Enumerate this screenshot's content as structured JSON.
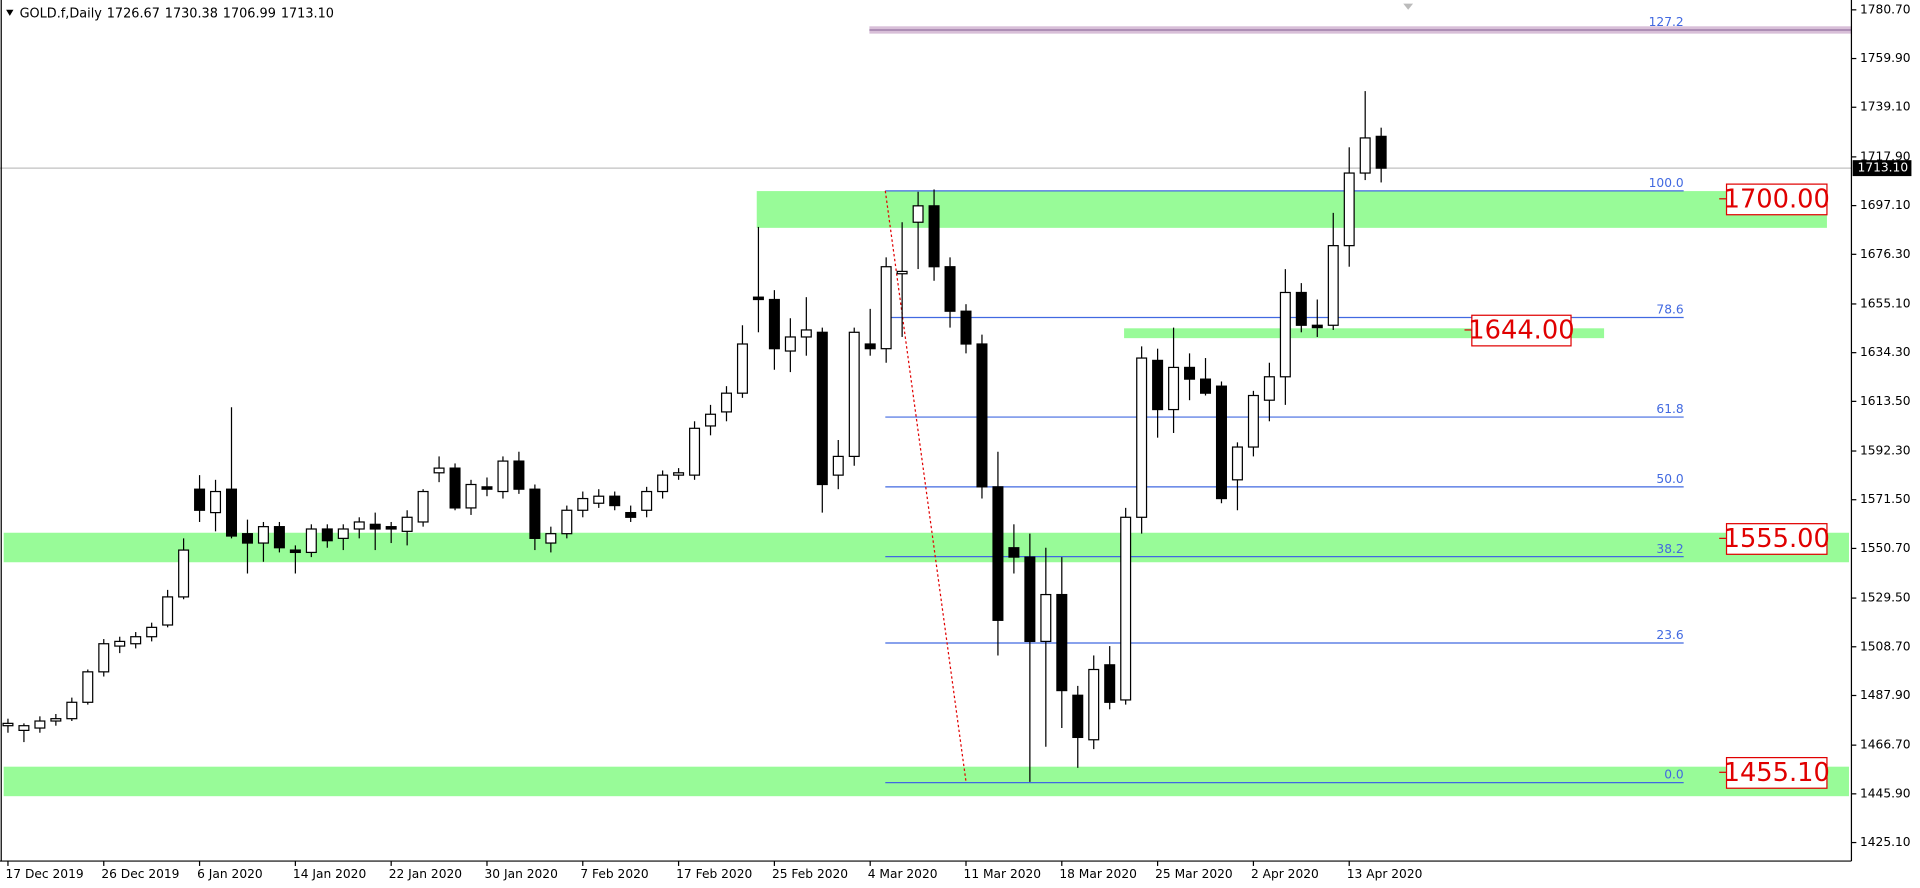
{
  "chart_data": {
    "type": "candlestick",
    "symbol": "GOLD.f,Daily",
    "header_ohlc": [
      "1726.67",
      "1730.38",
      "1706.99",
      "1713.10"
    ],
    "categories": [
      "17 Dec 2019",
      null,
      null,
      null,
      null,
      null,
      "26 Dec 2019",
      null,
      null,
      null,
      null,
      null,
      "6 Jan 2020",
      null,
      null,
      null,
      null,
      null,
      "14 Jan 2020",
      null,
      null,
      null,
      null,
      null,
      "22 Jan 2020",
      null,
      null,
      null,
      null,
      null,
      "30 Jan 2020",
      null,
      null,
      null,
      null,
      null,
      "7 Feb 2020",
      null,
      null,
      null,
      null,
      null,
      "17 Feb 2020",
      null,
      null,
      null,
      null,
      null,
      "25 Feb 2020",
      null,
      null,
      null,
      null,
      null,
      "4 Mar 2020",
      null,
      null,
      null,
      null,
      null,
      "11 Mar 2020",
      null,
      null,
      null,
      null,
      null,
      "18 Mar 2020",
      null,
      null,
      null,
      null,
      null,
      "25 Mar 2020",
      null,
      null,
      null,
      null,
      null,
      "2 Apr 2020",
      null,
      null,
      null,
      null,
      null,
      "13 Apr 2020",
      null,
      null
    ],
    "open": [
      1475,
      1473,
      1474,
      1477,
      1478,
      1485,
      1498,
      1509,
      1510,
      1513,
      1518,
      1530,
      1576,
      1566,
      1576,
      1557,
      1553,
      1560,
      1550,
      1549,
      1559,
      1555,
      1559,
      1561,
      1560,
      1558,
      1562,
      1583,
      1585,
      1568,
      1577,
      1575,
      1588,
      1576,
      1553,
      1557,
      1567,
      1570,
      1573,
      1566,
      1567,
      1575,
      1582,
      1582,
      1603,
      1609,
      1617,
      1658,
      1657,
      1635,
      1641,
      1643,
      1582,
      1590,
      1638,
      1636,
      1668,
      1690,
      1697,
      1671,
      1652,
      1638,
      1577,
      1551,
      1547,
      1511,
      1531,
      1488,
      1469,
      1501,
      1486,
      1564,
      1631,
      1610,
      1628,
      1623,
      1620,
      1580,
      1594,
      1614,
      1624,
      1660,
      1646,
      1646,
      1680,
      1711,
      1726.67
    ],
    "high": [
      1478,
      1476,
      1479,
      1480,
      1487,
      1499,
      1512,
      1513,
      1515,
      1519,
      1533,
      1555,
      1582,
      1580,
      1611,
      1563,
      1562,
      1562,
      1552,
      1561,
      1561,
      1561,
      1564,
      1566,
      1562,
      1567,
      1576,
      1590,
      1587,
      1580,
      1581,
      1590,
      1592,
      1578,
      1560,
      1569,
      1575,
      1576,
      1575,
      1569,
      1577,
      1584,
      1585,
      1605,
      1612,
      1620,
      1646,
      1688,
      1661,
      1649,
      1658,
      1645,
      1597,
      1645,
      1653,
      1675,
      1690,
      1703,
      1704,
      1675,
      1655,
      1642,
      1592,
      1561,
      1557,
      1551,
      1547,
      1492,
      1505,
      1509,
      1568,
      1637,
      1636,
      1645,
      1634,
      1632,
      1622,
      1596,
      1618,
      1630,
      1670,
      1664,
      1657,
      1694,
      1722,
      1746,
      1730.38
    ],
    "low": [
      1472,
      1468,
      1472,
      1475,
      1477,
      1484,
      1496,
      1506,
      1508,
      1511,
      1517,
      1529,
      1562,
      1558,
      1555,
      1540,
      1545,
      1549,
      1540,
      1547,
      1551,
      1550,
      1555,
      1550,
      1553,
      1552,
      1560,
      1579,
      1567,
      1565,
      1573,
      1572,
      1574,
      1550,
      1549,
      1555,
      1564,
      1568,
      1567,
      1562,
      1564,
      1572,
      1580,
      1580,
      1599,
      1605,
      1615,
      1643,
      1627,
      1626,
      1633,
      1566,
      1576,
      1586,
      1633,
      1630,
      1641,
      1670,
      1665,
      1645,
      1634,
      1572,
      1505,
      1540,
      1451,
      1466,
      1474,
      1457,
      1465,
      1482,
      1484,
      1557,
      1598,
      1600,
      1614,
      1616,
      1570,
      1567,
      1590,
      1605,
      1612,
      1643,
      1641,
      1644,
      1671,
      1708,
      1706.99
    ],
    "close": [
      1476,
      1475,
      1477,
      1478,
      1485,
      1498,
      1510,
      1511,
      1513,
      1517,
      1530,
      1550,
      1567,
      1575,
      1556,
      1553,
      1560,
      1551,
      1549,
      1559,
      1554,
      1559,
      1562,
      1559,
      1559,
      1564,
      1575,
      1585,
      1568,
      1578,
      1576,
      1588,
      1576,
      1555,
      1557,
      1567,
      1572,
      1573,
      1569,
      1564,
      1575,
      1582,
      1583,
      1602,
      1608,
      1617,
      1638,
      1657,
      1636,
      1641,
      1644,
      1578,
      1590,
      1643,
      1636,
      1671,
      1669,
      1697,
      1671,
      1652,
      1638,
      1577,
      1520,
      1547,
      1511,
      1531,
      1490,
      1470,
      1499,
      1485,
      1564,
      1632,
      1610,
      1628,
      1623,
      1617,
      1572,
      1594,
      1616,
      1624,
      1660,
      1646,
      1645,
      1680,
      1711,
      1726,
      1713.1
    ],
    "up_color": "#ffffff",
    "down_color": "#000000",
    "ylim": [
      1417.2,
      1784.9
    ],
    "yticks": [
      {
        "value": 1780.7,
        "label": "1780.70"
      },
      {
        "value": 1759.9,
        "label": "1759.90"
      },
      {
        "value": 1739.1,
        "label": "1739.10"
      },
      {
        "value": 1717.9,
        "label": "1717.90"
      },
      {
        "value": 1697.1,
        "label": "1697.10"
      },
      {
        "value": 1676.3,
        "label": "1676.30"
      },
      {
        "value": 1655.1,
        "label": "1655.10"
      },
      {
        "value": 1634.3,
        "label": "1634.30"
      },
      {
        "value": 1613.5,
        "label": "1613.50"
      },
      {
        "value": 1592.3,
        "label": "1592.30"
      },
      {
        "value": 1571.5,
        "label": "1571.50"
      },
      {
        "value": 1550.7,
        "label": "1550.70"
      },
      {
        "value": 1529.5,
        "label": "1529.50"
      },
      {
        "value": 1508.7,
        "label": "1508.70"
      },
      {
        "value": 1487.9,
        "label": "1487.90"
      },
      {
        "value": 1466.7,
        "label": "1466.70"
      },
      {
        "value": 1445.9,
        "label": "1445.90"
      },
      {
        "value": 1425.1,
        "label": "1425.10"
      }
    ],
    "last_price": {
      "value": 1713.1,
      "label": "1713.10"
    },
    "zones": [
      {
        "top": 1703.3,
        "bottom": 1687.6,
        "level": 1700,
        "label": "1700.00"
      },
      {
        "top": 1644.7,
        "bottom": 1640.5,
        "level": 1644,
        "label": "1644.00"
      },
      {
        "top": 1557.4,
        "bottom": 1544.8,
        "level": 1555,
        "label": "1555.00"
      },
      {
        "top": 1457.5,
        "bottom": 1444.9,
        "level": 1455.1,
        "label": "1455.10"
      }
    ],
    "fib_levels": [
      {
        "label": "127.2",
        "price": 1772.1
      },
      {
        "label": "100.0",
        "price": 1703.4
      },
      {
        "label": "78.6",
        "price": 1649.3
      },
      {
        "label": "61.8",
        "price": 1606.8
      },
      {
        "label": "50.0",
        "price": 1577.0
      },
      {
        "label": "38.2",
        "price": 1547.2
      },
      {
        "label": "23.6",
        "price": 1510.3
      },
      {
        "label": "0.0",
        "price": 1450.7
      }
    ]
  }
}
